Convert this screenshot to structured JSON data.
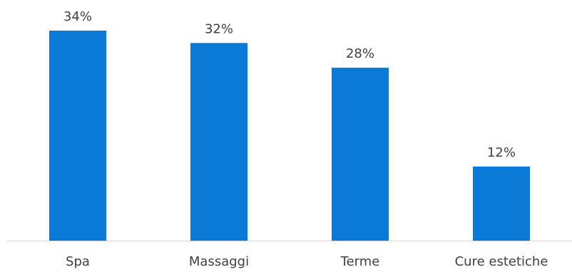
{
  "chart_data": {
    "type": "bar",
    "categories": [
      "Spa",
      "Massaggi",
      "Terme",
      "Cure estetiche"
    ],
    "values": [
      34,
      32,
      28,
      12
    ],
    "value_labels": [
      "34%",
      "32%",
      "28%",
      "12%"
    ],
    "title": "",
    "xlabel": "",
    "ylabel": "",
    "ylim": [
      0,
      40
    ],
    "grid": false,
    "legend": "none",
    "colors": {
      "bar": "#0a7ad6",
      "axis": "#d9d9d9",
      "text": "#404040"
    }
  }
}
